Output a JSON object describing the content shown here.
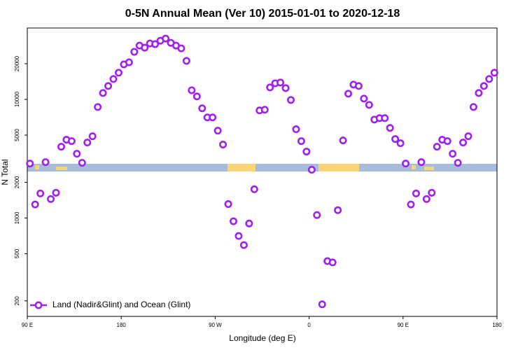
{
  "chart_data": {
    "type": "scatter",
    "title": "0-5N Annual Mean (Ver 10)   2015-01-01 to 2020-12-18",
    "xlabel": "Longitude (deg E)",
    "ylabel": "N Total",
    "x": [
      92.5,
      97.5,
      102.5,
      107.5,
      112.5,
      117.5,
      122.5,
      127.5,
      132.5,
      137.5,
      142.5,
      147.5,
      152.5,
      157.5,
      162.5,
      167.5,
      172.5,
      177.5,
      182.5,
      187.5,
      192.5,
      197.5,
      202.5,
      207.5,
      212.5,
      217.5,
      222.5,
      227.5,
      232.5,
      237.5,
      242.5,
      247.5,
      252.5,
      257.5,
      262.5,
      267.5,
      272.5,
      277.5,
      282.5,
      287.5,
      292.5,
      297.5,
      302.5,
      307.5,
      312.5,
      317.5,
      322.5,
      327.5,
      332.5,
      337.5,
      342.5,
      347.5,
      352.5,
      357.5,
      362.5,
      367.5,
      372.5,
      377.5,
      382.5,
      387.5,
      392.5,
      397.5,
      402.5,
      407.5,
      412.5,
      417.5,
      422.5,
      427.5,
      432.5,
      437.5,
      442.5,
      447.5,
      452.5,
      457.5,
      462.5,
      467.5,
      472.5,
      477.5,
      482.5,
      487.5,
      492.5,
      497.5,
      502.5,
      507.5,
      512.5,
      517.5,
      522.5,
      527.5,
      532.5,
      537.5
    ],
    "series": [
      {
        "name": "Land (Nadir&Glint) and Ocean (Glint)",
        "color": "#a020f0",
        "values": [
          2880,
          1300,
          1610,
          2960,
          1445,
          1633,
          3990,
          4570,
          4450,
          3480,
          2920,
          4330,
          4890,
          8630,
          11320,
          12970,
          14850,
          16780,
          19730,
          20550,
          25180,
          28440,
          27300,
          29630,
          29240,
          31260,
          32580,
          29990,
          28440,
          26920,
          21130,
          11940,
          10590,
          8410,
          7050,
          7050,
          5450,
          4160,
          1310,
          938,
          705,
          591,
          899,
          1746,
          8070,
          8180,
          12620,
          13680,
          13870,
          12450,
          9890,
          5600,
          4450,
          3630,
          2550,
          1059,
          187,
          433,
          422,
          1164,
          4510,
          11170,
          13330,
          12970,
          10160,
          8990,
          6760,
          6950,
          6950,
          5750,
          4630,
          4270,
          2880,
          1300,
          1610,
          2960,
          1445,
          1633,
          3990,
          4570,
          4450,
          3480,
          2920,
          4330,
          4890,
          8630,
          11320,
          12970,
          14850,
          16780
        ]
      }
    ],
    "xlim": [
      90,
      540
    ],
    "xticks": [
      {
        "value": 90,
        "label": "90 E"
      },
      180,
      {
        "value": 270,
        "label": "90 W"
      },
      {
        "value": 360,
        "label": "0"
      },
      {
        "value": 450,
        "label": "90 E"
      },
      {
        "value": 540,
        "label": "180"
      }
    ],
    "ylim": [
      148,
      40000
    ],
    "ylog": true,
    "yticks": [
      200,
      500,
      1000,
      2000,
      5000,
      10000,
      20000
    ],
    "legend": "lower left"
  }
}
